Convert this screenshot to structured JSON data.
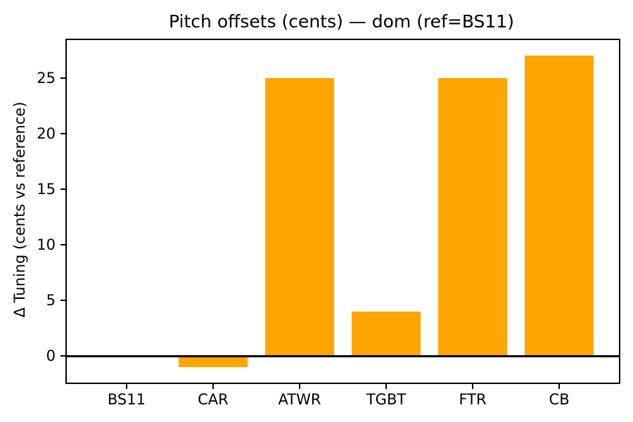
{
  "figure": {
    "title": "Pitch offsets (cents) — dom (ref=BS11)",
    "ylabel": "Δ Tuning (cents vs reference)"
  },
  "chart_data": {
    "type": "bar",
    "title": "Pitch offsets (cents) — dom (ref=BS11)",
    "xlabel": "",
    "ylabel": "Δ Tuning (cents vs reference)",
    "categories": [
      "BS11",
      "CAR",
      "ATWR",
      "TGBT",
      "FTR",
      "CB"
    ],
    "values": [
      0,
      -1,
      25,
      4,
      25,
      27
    ],
    "yticks": [
      0,
      5,
      10,
      15,
      20,
      25
    ],
    "ylim": [
      -2.4,
      28.4
    ],
    "bar_color": "#FFA500",
    "axis_color": "#000000",
    "background_color": "#ffffff",
    "grid": false,
    "legend": false,
    "zero_line": true,
    "bar_width_fraction": 0.8
  }
}
